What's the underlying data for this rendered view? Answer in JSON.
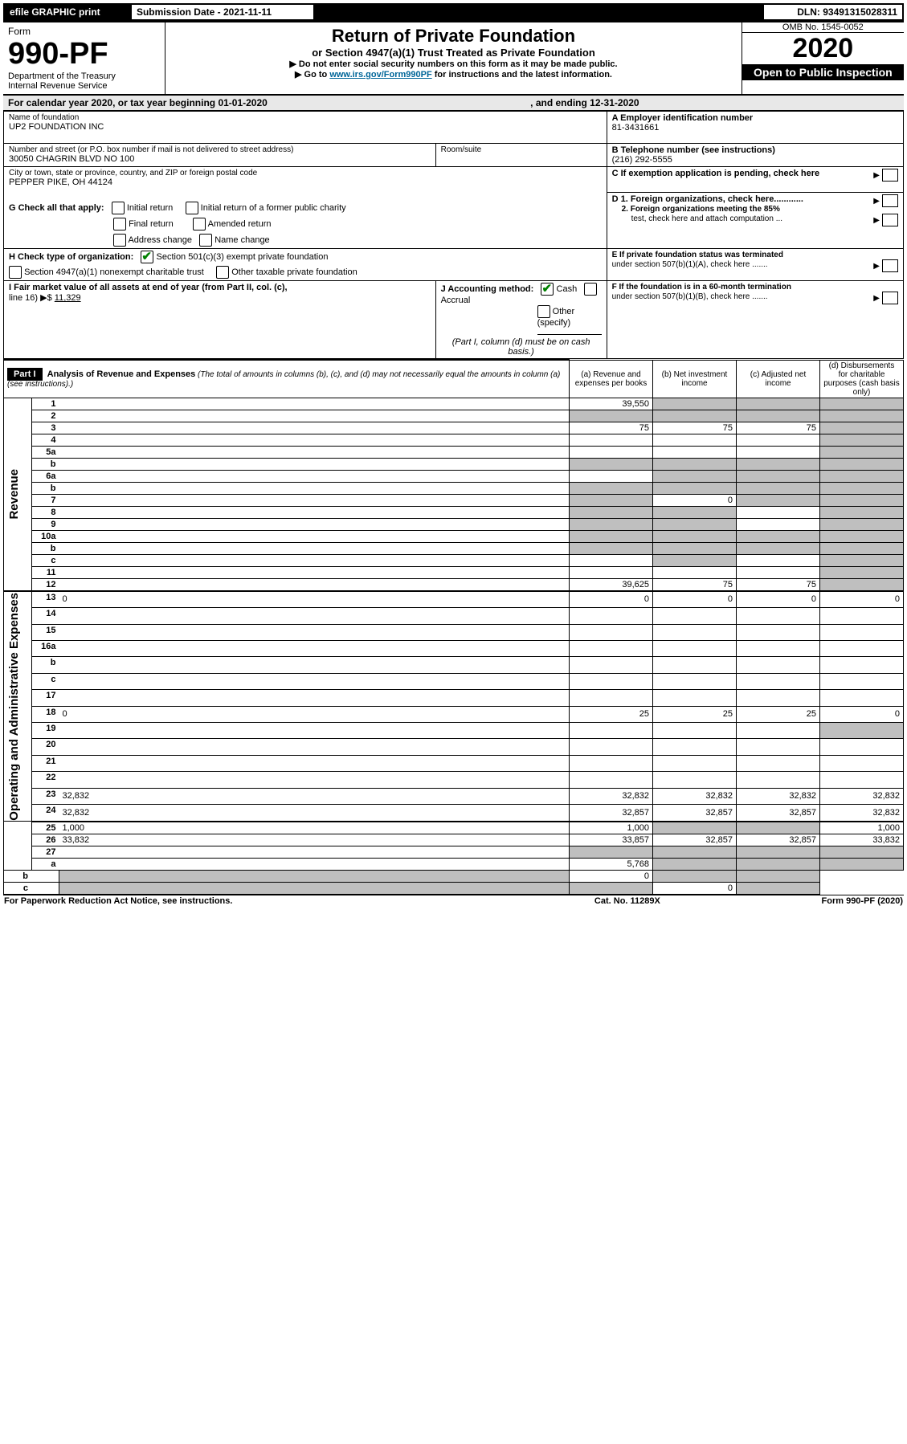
{
  "top": {
    "efile": "efile GRAPHIC print",
    "subdate_label": "Submission Date - 2021-11-11",
    "dln_label": "DLN: 93491315028311"
  },
  "header": {
    "form_word": "Form",
    "form_no": "990-PF",
    "dept1": "Department of the Treasury",
    "dept2": "Internal Revenue Service",
    "title": "Return of Private Foundation",
    "subtitle": "or Section 4947(a)(1) Trust Treated as Private Foundation",
    "instr1": "▶ Do not enter social security numbers on this form as it may be made public.",
    "instr2_pre": "▶ Go to ",
    "instr2_link": "www.irs.gov/Form990PF",
    "instr2_post": " for instructions and the latest information.",
    "omb": "OMB No. 1545-0052",
    "year": "2020",
    "openpub": "Open to Public Inspection"
  },
  "cal": {
    "text1": "For calendar year 2020, or tax year beginning 01-01-2020",
    "text2": ", and ending 12-31-2020"
  },
  "info": {
    "name_label": "Name of foundation",
    "name": "UP2 FOUNDATION INC",
    "addr_label": "Number and street (or P.O. box number if mail is not delivered to street address)",
    "addr": "30050 CHAGRIN BLVD NO 100",
    "room_label": "Room/suite",
    "city_label": "City or town, state or province, country, and ZIP or foreign postal code",
    "city": "PEPPER PIKE, OH  44124",
    "ein_label": "A Employer identification number",
    "ein": "81-3431661",
    "tel_label": "B Telephone number (see instructions)",
    "tel": "(216) 292-5555",
    "c_label": "C If exemption application is pending, check here",
    "g_label": "G Check all that apply:",
    "g_initial": "Initial return",
    "g_initial_former": "Initial return of a former public charity",
    "g_final": "Final return",
    "g_amended": "Amended return",
    "g_addr": "Address change",
    "g_name": "Name change",
    "d1": "D 1. Foreign organizations, check here............",
    "d2a": "2. Foreign organizations meeting the 85%",
    "d2b": "test, check here and attach computation ...",
    "h_label": "H Check type of organization:",
    "h_501": "Section 501(c)(3) exempt private foundation",
    "h_4947": "Section 4947(a)(1) nonexempt charitable trust",
    "h_other": "Other taxable private foundation",
    "e1": "E If private foundation status was terminated",
    "e2": "under section 507(b)(1)(A), check here .......",
    "i_label1": "I Fair market value of all assets at end of year (from Part II, col. (c),",
    "i_label2": "line 16) ▶$ ",
    "i_val": "11,329",
    "j_label": "J Accounting method:",
    "j_cash": "Cash",
    "j_accrual": "Accrual",
    "j_other": "Other (specify)",
    "j_note": "(Part I, column (d) must be on cash basis.)",
    "f1": "F If the foundation is in a 60-month termination",
    "f2": "under section 507(b)(1)(B), check here .......",
    "part1": "Part I",
    "part1_title": "Analysis of Revenue and Expenses",
    "part1_note": " (The total of amounts in columns (b), (c), and (d) may not necessarily equal the amounts in column (a) (see instructions).)",
    "col_a": "(a) Revenue and expenses per books",
    "col_b": "(b) Net investment income",
    "col_c": "(c) Adjusted net income",
    "col_d": "(d) Disbursements for charitable purposes (cash basis only)"
  },
  "rev_label": "Revenue",
  "exp_label": "Operating and Administrative Expenses",
  "rows": [
    {
      "n": "1",
      "d": "",
      "a": "39,550",
      "b": "",
      "c": "",
      "bgrey": true,
      "cgrey": true,
      "dgrey": true
    },
    {
      "n": "2",
      "d": "",
      "a": "",
      "b": "",
      "c": "",
      "agrey": true,
      "bgrey": true,
      "cgrey": true,
      "dgrey": true
    },
    {
      "n": "3",
      "d": "",
      "a": "75",
      "b": "75",
      "c": "75",
      "dgrey": true
    },
    {
      "n": "4",
      "d": "",
      "a": "",
      "b": "",
      "c": "",
      "dgrey": true
    },
    {
      "n": "5a",
      "d": "",
      "a": "",
      "b": "",
      "c": "",
      "dgrey": true
    },
    {
      "n": "b",
      "d": "",
      "a": "",
      "b": "",
      "c": "",
      "agrey": true,
      "bgrey": true,
      "cgrey": true,
      "dgrey": true
    },
    {
      "n": "6a",
      "d": "",
      "a": "",
      "b": "",
      "c": "",
      "bgrey": true,
      "cgrey": true,
      "dgrey": true
    },
    {
      "n": "b",
      "d": "",
      "a": "",
      "b": "",
      "c": "",
      "agrey": true,
      "bgrey": true,
      "cgrey": true,
      "dgrey": true
    },
    {
      "n": "7",
      "d": "",
      "a": "",
      "b": "0",
      "c": "",
      "agrey": true,
      "cgrey": true,
      "dgrey": true
    },
    {
      "n": "8",
      "d": "",
      "a": "",
      "b": "",
      "c": "",
      "agrey": true,
      "bgrey": true,
      "dgrey": true
    },
    {
      "n": "9",
      "d": "",
      "a": "",
      "b": "",
      "c": "",
      "agrey": true,
      "bgrey": true,
      "dgrey": true
    },
    {
      "n": "10a",
      "d": "",
      "a": "",
      "b": "",
      "c": "",
      "agrey": true,
      "bgrey": true,
      "cgrey": true,
      "dgrey": true
    },
    {
      "n": "b",
      "d": "",
      "a": "",
      "b": "",
      "c": "",
      "agrey": true,
      "bgrey": true,
      "cgrey": true,
      "dgrey": true
    },
    {
      "n": "c",
      "d": "",
      "a": "",
      "b": "",
      "c": "",
      "bgrey": true,
      "dgrey": true
    },
    {
      "n": "11",
      "d": "",
      "a": "",
      "b": "",
      "c": "",
      "dgrey": true
    },
    {
      "n": "12",
      "d": "",
      "a": "39,625",
      "b": "75",
      "c": "75",
      "dgrey": true
    },
    {
      "n": "13",
      "d": "0",
      "a": "0",
      "b": "0",
      "c": "0"
    },
    {
      "n": "14",
      "d": "",
      "a": "",
      "b": "",
      "c": ""
    },
    {
      "n": "15",
      "d": "",
      "a": "",
      "b": "",
      "c": ""
    },
    {
      "n": "16a",
      "d": "",
      "a": "",
      "b": "",
      "c": ""
    },
    {
      "n": "b",
      "d": "",
      "a": "",
      "b": "",
      "c": ""
    },
    {
      "n": "c",
      "d": "",
      "a": "",
      "b": "",
      "c": ""
    },
    {
      "n": "17",
      "d": "",
      "a": "",
      "b": "",
      "c": ""
    },
    {
      "n": "18",
      "d": "0",
      "a": "25",
      "b": "25",
      "c": "25"
    },
    {
      "n": "19",
      "d": "",
      "a": "",
      "b": "",
      "c": "",
      "dgrey": true
    },
    {
      "n": "20",
      "d": "",
      "a": "",
      "b": "",
      "c": ""
    },
    {
      "n": "21",
      "d": "",
      "a": "",
      "b": "",
      "c": ""
    },
    {
      "n": "22",
      "d": "",
      "a": "",
      "b": "",
      "c": ""
    },
    {
      "n": "23",
      "d": "32,832",
      "a": "32,832",
      "b": "32,832",
      "c": "32,832"
    },
    {
      "n": "24",
      "d": "32,832",
      "a": "32,857",
      "b": "32,857",
      "c": "32,857"
    },
    {
      "n": "25",
      "d": "1,000",
      "a": "1,000",
      "b": "",
      "c": "",
      "bgrey": true,
      "cgrey": true
    },
    {
      "n": "26",
      "d": "33,832",
      "a": "33,857",
      "b": "32,857",
      "c": "32,857"
    },
    {
      "n": "27",
      "d": "",
      "a": "",
      "b": "",
      "c": "",
      "agrey": true,
      "bgrey": true,
      "cgrey": true,
      "dgrey": true
    },
    {
      "n": "a",
      "d": "",
      "a": "5,768",
      "b": "",
      "c": "",
      "bgrey": true,
      "cgrey": true,
      "dgrey": true
    },
    {
      "n": "b",
      "d": "",
      "a": "",
      "b": "0",
      "c": "",
      "agrey": true,
      "cgrey": true,
      "dgrey": true
    },
    {
      "n": "c",
      "d": "",
      "a": "",
      "b": "",
      "c": "0",
      "agrey": true,
      "bgrey": true,
      "dgrey": true
    }
  ],
  "footer": {
    "left": "For Paperwork Reduction Act Notice, see instructions.",
    "mid": "Cat. No. 11289X",
    "right": "Form 990-PF (2020)"
  }
}
